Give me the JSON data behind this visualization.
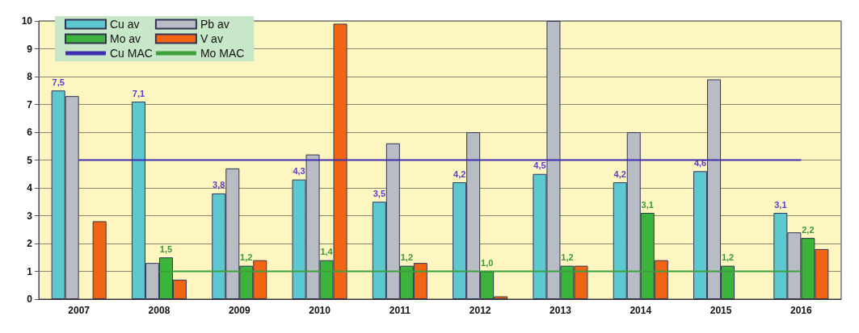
{
  "chart_data": {
    "type": "bar",
    "categories": [
      "2007",
      "2008",
      "2009",
      "2010",
      "2011",
      "2012",
      "2013",
      "2014",
      "2015",
      "2016"
    ],
    "series": [
      {
        "name": "Cu av",
        "color": "#5ec8d0",
        "values": [
          7.5,
          7.1,
          3.8,
          4.3,
          3.5,
          4.2,
          4.5,
          4.2,
          4.6,
          3.1
        ],
        "value_labels": [
          "7,5",
          "7,1",
          "3,8",
          "4,3",
          "3,5",
          "4,2",
          "4,5",
          "4,2",
          "4,6",
          "3,1"
        ]
      },
      {
        "name": "Pb av",
        "color": "#b8bcc4",
        "values": [
          7.3,
          1.3,
          4.7,
          5.2,
          5.6,
          6.0,
          10,
          6.0,
          7.9,
          2.4
        ]
      },
      {
        "name": "Mo av",
        "color": "#3cb43c",
        "values": [
          null,
          1.5,
          1.2,
          1.4,
          1.2,
          1.0,
          1.2,
          3.1,
          1.2,
          2.2
        ],
        "value_labels": [
          null,
          "1,5",
          "1,2",
          "1,4",
          "1,2",
          "1,0",
          "1,2",
          "3,1",
          "1,2",
          "2,2"
        ]
      },
      {
        "name": "V av",
        "color": "#f06414",
        "values": [
          2.8,
          0.7,
          1.4,
          9.9,
          1.3,
          0.1,
          1.2,
          1.4,
          null,
          1.8
        ]
      },
      {
        "name": "Cu MAC",
        "type": "line",
        "color": "#4030b0",
        "values": [
          5,
          5,
          5,
          5,
          5,
          5,
          5,
          5,
          5,
          5
        ]
      },
      {
        "name": "Mo MAC",
        "type": "line",
        "color": "#3ca03c",
        "values": [
          null,
          1,
          1,
          1,
          1,
          1,
          1,
          1,
          1,
          1
        ]
      }
    ],
    "ylim": [
      0,
      10
    ],
    "yticks": [
      0,
      1,
      2,
      3,
      4,
      5,
      6,
      7,
      8,
      9,
      10
    ],
    "grid": "y",
    "legend": "top left",
    "marker": "none"
  }
}
